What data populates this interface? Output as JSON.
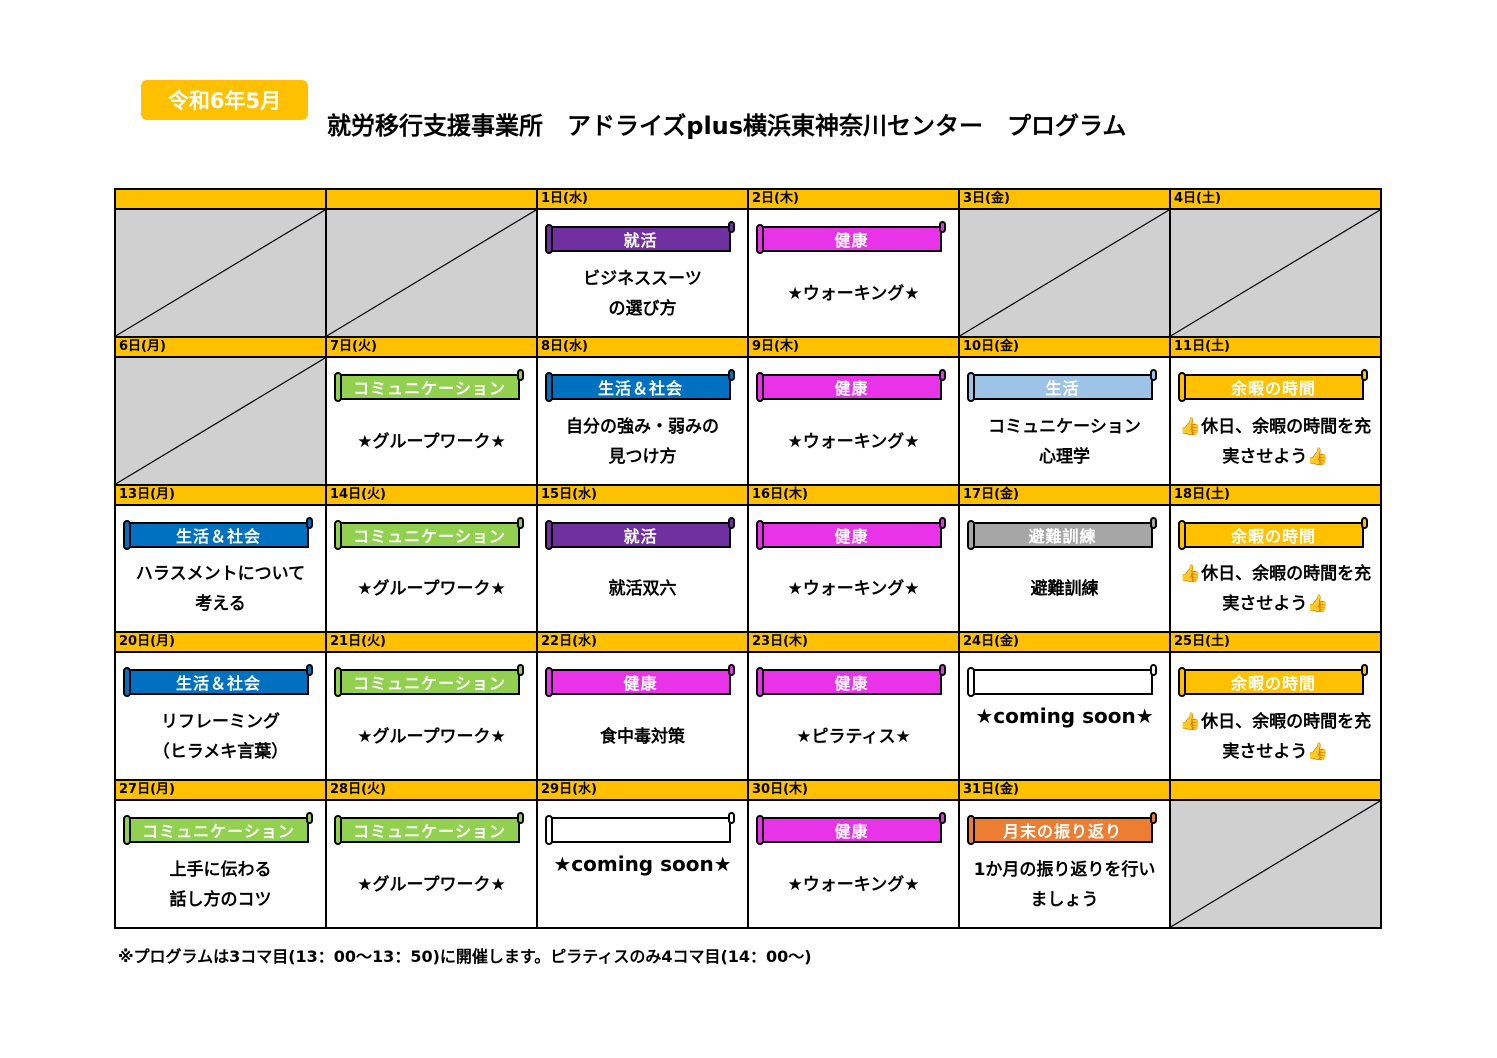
{
  "header": {
    "month_badge": "令和6年5月",
    "title": "就労移行支援事業所　アドライズplus横浜東神奈川センター　プログラム"
  },
  "categories": {
    "shukatsu": {
      "label": "就活",
      "color": "#7030A0"
    },
    "kenko": {
      "label": "健康",
      "color": "#E833E8"
    },
    "comm": {
      "label": "コミュニケーション",
      "color": "#92D050"
    },
    "shakai": {
      "label": "生活＆社会",
      "color": "#0070C0"
    },
    "seikatsu": {
      "label": "生活",
      "color": "#9DC3E6"
    },
    "yoka": {
      "label": "余暇の時間",
      "color": "#FFC000"
    },
    "hinan": {
      "label": "避難訓練",
      "color": "#A6A6A6"
    },
    "getsumatsu": {
      "label": "月末の振り返り",
      "color": "#ED7D31"
    },
    "blank": {
      "label": "",
      "color": "#FFFFFF"
    }
  },
  "weeks": [
    [
      {
        "date": "",
        "empty": true
      },
      {
        "date": "",
        "empty": true
      },
      {
        "date": "1日(水)",
        "category": "就活",
        "color": "#7030A0",
        "text": "ビジネススーツ\nの選び方"
      },
      {
        "date": "2日(木)",
        "category": "健康",
        "color": "#E833E8",
        "text": "★ウォーキング★"
      },
      {
        "date": "3日(金)",
        "empty": true
      },
      {
        "date": "4日(土)",
        "empty": true
      }
    ],
    [
      {
        "date": "6日(月)",
        "empty": true
      },
      {
        "date": "7日(火)",
        "category": "コミュニケーション",
        "color": "#92D050",
        "text": "★グループワーク★"
      },
      {
        "date": "8日(水)",
        "category": "生活＆社会",
        "color": "#0070C0",
        "text": "自分の強み・弱みの\n見つけ方"
      },
      {
        "date": "9日(木)",
        "category": "健康",
        "color": "#E833E8",
        "text": "★ウォーキング★"
      },
      {
        "date": "10日(金)",
        "category": "生活",
        "color": "#9DC3E6",
        "text": "コミュニケーション\n心理学"
      },
      {
        "date": "11日(土)",
        "category": "余暇の時間",
        "color": "#FFC000",
        "text": "👍休日、余暇の時間を充\n実させよう👍"
      }
    ],
    [
      {
        "date": "13日(月)",
        "category": "生活＆社会",
        "color": "#0070C0",
        "text": "ハラスメントについて\n考える"
      },
      {
        "date": "14日(火)",
        "category": "コミュニケーション",
        "color": "#92D050",
        "text": "★グループワーク★"
      },
      {
        "date": "15日(水)",
        "category": "就活",
        "color": "#7030A0",
        "text": "就活双六"
      },
      {
        "date": "16日(木)",
        "category": "健康",
        "color": "#E833E8",
        "text": "★ウォーキング★"
      },
      {
        "date": "17日(金)",
        "category": "避難訓練",
        "color": "#A6A6A6",
        "text": "避難訓練"
      },
      {
        "date": "18日(土)",
        "category": "余暇の時間",
        "color": "#FFC000",
        "text": "👍休日、余暇の時間を充\n実させよう👍"
      }
    ],
    [
      {
        "date": "20日(月)",
        "category": "生活＆社会",
        "color": "#0070C0",
        "text": "リフレーミング\n（ヒラメキ言葉）"
      },
      {
        "date": "21日(火)",
        "category": "コミュニケーション",
        "color": "#92D050",
        "text": "★グループワーク★"
      },
      {
        "date": "22日(水)",
        "category": "健康",
        "color": "#E833E8",
        "text": "食中毒対策"
      },
      {
        "date": "23日(木)",
        "category": "健康",
        "color": "#E833E8",
        "text": "★ピラティス★"
      },
      {
        "date": "24日(金)",
        "category": "",
        "color": "#FFFFFF",
        "text": "★coming soon★",
        "top": true
      },
      {
        "date": "25日(土)",
        "category": "余暇の時間",
        "color": "#FFC000",
        "text": "👍休日、余暇の時間を充\n実させよう👍"
      }
    ],
    [
      {
        "date": "27日(月)",
        "category": "コミュニケーション",
        "color": "#92D050",
        "text": "上手に伝わる\n話し方のコツ"
      },
      {
        "date": "28日(火)",
        "category": "コミュニケーション",
        "color": "#92D050",
        "text": "★グループワーク★"
      },
      {
        "date": "29日(水)",
        "category": "",
        "color": "#FFFFFF",
        "text": "★coming soon★",
        "top": true
      },
      {
        "date": "30日(木)",
        "category": "健康",
        "color": "#E833E8",
        "text": "★ウォーキング★"
      },
      {
        "date": "31日(金)",
        "category": "月末の振り返り",
        "color": "#ED7D31",
        "text": "1か月の振り返りを行い\nましょう"
      },
      {
        "date": "",
        "empty": true
      }
    ]
  ],
  "footnote": "※プログラムは3コマ目(13：00～13：50)に開催します。ピラティスのみ4コマ目(14：00～)"
}
